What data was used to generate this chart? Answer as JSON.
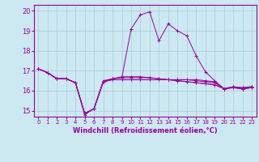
{
  "background_color": "#cce8f0",
  "grid_color": "#aaccdd",
  "line_color": "#990099",
  "marker": "+",
  "xlabel": "Windchill (Refroidissement éolien,°C)",
  "xlabel_fontsize": 6.0,
  "xtick_fontsize": 5.0,
  "ytick_fontsize": 6.0,
  "ylim": [
    14.7,
    20.3
  ],
  "xlim": [
    -0.5,
    23.5
  ],
  "yticks": [
    15,
    16,
    17,
    18,
    19,
    20
  ],
  "xticks": [
    0,
    1,
    2,
    3,
    4,
    5,
    6,
    7,
    8,
    9,
    10,
    11,
    12,
    13,
    14,
    15,
    16,
    17,
    18,
    19,
    20,
    21,
    22,
    23
  ],
  "series": [
    [
      17.1,
      16.9,
      16.6,
      16.6,
      16.4,
      14.8,
      15.1,
      16.5,
      16.6,
      16.65,
      19.1,
      19.8,
      19.95,
      18.5,
      19.35,
      19.0,
      18.75,
      17.75,
      16.95,
      16.5,
      16.1,
      16.2,
      16.15,
      16.2
    ],
    [
      17.1,
      16.9,
      16.6,
      16.6,
      16.4,
      14.85,
      15.1,
      16.45,
      16.55,
      16.55,
      16.55,
      16.55,
      16.55,
      16.55,
      16.55,
      16.55,
      16.55,
      16.55,
      16.5,
      16.45,
      16.1,
      16.2,
      16.15,
      16.2
    ],
    [
      17.1,
      16.9,
      16.6,
      16.6,
      16.4,
      14.85,
      15.1,
      16.45,
      16.55,
      16.55,
      16.55,
      16.55,
      16.55,
      16.55,
      16.55,
      16.55,
      16.55,
      16.5,
      16.45,
      16.4,
      16.1,
      16.15,
      16.1,
      16.15
    ],
    [
      17.1,
      16.9,
      16.6,
      16.6,
      16.4,
      14.85,
      15.1,
      16.45,
      16.6,
      16.65,
      16.65,
      16.65,
      16.65,
      16.6,
      16.55,
      16.5,
      16.45,
      16.4,
      16.35,
      16.3,
      16.1,
      16.15,
      16.1,
      16.15
    ],
    [
      17.1,
      16.9,
      16.6,
      16.6,
      16.4,
      14.85,
      15.1,
      16.45,
      16.6,
      16.7,
      16.7,
      16.7,
      16.65,
      16.6,
      16.55,
      16.5,
      16.45,
      16.4,
      16.35,
      16.3,
      16.1,
      16.15,
      16.1,
      16.15
    ]
  ]
}
